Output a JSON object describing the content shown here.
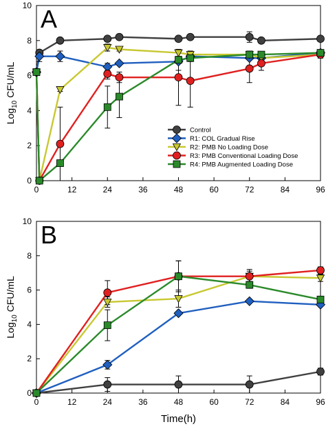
{
  "chart_data": [
    {
      "panel": "A",
      "type": "line",
      "ylabel_main": "Log",
      "ylabel_sub": "10",
      "ylabel_rest": " CFU/mL",
      "xlabel": "",
      "xlim": [
        0,
        96
      ],
      "ylim": [
        0,
        10
      ],
      "xticks": [
        0,
        12,
        24,
        36,
        48,
        60,
        72,
        84,
        96
      ],
      "yticks": [
        0,
        2,
        4,
        6,
        8,
        10
      ],
      "legend_position": "lower-right",
      "series": [
        {
          "name": "Control",
          "color": "#404040",
          "marker": "circle",
          "x": [
            0,
            1,
            8,
            24,
            28,
            48,
            52,
            72,
            76,
            96
          ],
          "y": [
            6.2,
            7.3,
            8.0,
            8.1,
            8.2,
            8.1,
            8.2,
            8.2,
            8.0,
            8.1
          ],
          "err": [
            0,
            0,
            0,
            0.1,
            0.1,
            0,
            0.1,
            0.3,
            0.1,
            0.1
          ]
        },
        {
          "name": "R1: COL Gradual Rise",
          "color": "#1f5fbf",
          "marker": "diamond",
          "x": [
            0,
            1,
            8,
            24,
            28,
            48,
            52,
            72,
            76,
            96
          ],
          "y": [
            6.2,
            7.1,
            7.1,
            6.5,
            6.7,
            6.8,
            7.1,
            7.0,
            7.0,
            7.3
          ],
          "err": [
            0,
            0.3,
            0.3,
            0.2,
            0,
            0,
            0,
            0,
            0,
            0
          ]
        },
        {
          "name": "R2: PMB No Loading Dose",
          "color": "#c8c832",
          "marker": "triangle",
          "x": [
            0,
            1,
            8,
            24,
            28,
            48,
            52,
            72,
            76,
            96
          ],
          "y": [
            6.2,
            0,
            5.2,
            7.6,
            7.5,
            7.3,
            7.2,
            7.2,
            7.0,
            7.2
          ],
          "err": [
            0,
            0,
            0.1,
            0.2,
            0.1,
            0.2,
            0.2,
            0.2,
            0.2,
            0.2
          ]
        },
        {
          "name": "R3: PMB Conventional Loading Dose",
          "color": "#e02020",
          "marker": "circle",
          "x": [
            0,
            1,
            8,
            24,
            28,
            48,
            52,
            72,
            76,
            96
          ],
          "y": [
            6.2,
            0,
            2.1,
            6.1,
            5.9,
            5.9,
            5.7,
            6.4,
            6.7,
            7.2
          ],
          "err": [
            0,
            0,
            2.1,
            0.3,
            0.3,
            1.6,
            1.5,
            0.8,
            0.4,
            0.2
          ]
        },
        {
          "name": "R4: PMB Augmented Loading Dose",
          "color": "#2a8a2a",
          "marker": "square",
          "x": [
            0,
            1,
            8,
            24,
            28,
            48,
            52,
            72,
            76,
            96
          ],
          "y": [
            6.2,
            0,
            1.0,
            4.2,
            4.8,
            6.9,
            7.0,
            7.2,
            7.2,
            7.3
          ],
          "err": [
            0,
            0,
            0,
            1.2,
            1.2,
            0.6,
            0.2,
            0.2,
            0,
            0
          ]
        }
      ]
    },
    {
      "panel": "B",
      "type": "line",
      "ylabel_main": "Log",
      "ylabel_sub": "10",
      "ylabel_rest": " CFU/mL",
      "xlabel": "Time(h)",
      "xlim": [
        0,
        96
      ],
      "ylim": [
        0,
        10
      ],
      "xticks": [
        0,
        12,
        24,
        36,
        48,
        60,
        72,
        84,
        96
      ],
      "yticks": [
        0,
        2,
        4,
        6,
        8,
        10
      ],
      "series": [
        {
          "name": "Control",
          "color": "#404040",
          "marker": "circle",
          "x": [
            0,
            24,
            48,
            72,
            96
          ],
          "y": [
            0,
            0.5,
            0.5,
            0.5,
            1.25
          ],
          "err": [
            0,
            0.4,
            0.5,
            0.5,
            0.2
          ]
        },
        {
          "name": "R1: COL Gradual Rise",
          "color": "#1f5fbf",
          "marker": "diamond",
          "x": [
            0,
            24,
            48,
            72,
            96
          ],
          "y": [
            0,
            1.65,
            4.65,
            5.35,
            5.15
          ],
          "err": [
            0,
            0.25,
            0,
            0.1,
            0.1
          ]
        },
        {
          "name": "R2: PMB No Loading Dose",
          "color": "#c8c832",
          "marker": "triangle",
          "x": [
            0,
            24,
            48,
            72,
            96
          ],
          "y": [
            0,
            5.3,
            5.5,
            6.8,
            6.7
          ],
          "err": [
            0,
            0.3,
            0.5,
            0.3,
            0.2
          ]
        },
        {
          "name": "R3: PMB Conventional Loading Dose",
          "color": "#e02020",
          "marker": "circle",
          "x": [
            0,
            24,
            48,
            72,
            96
          ],
          "y": [
            0,
            5.85,
            6.8,
            6.8,
            7.15
          ],
          "err": [
            0,
            0.7,
            0.9,
            0.4,
            0.2
          ]
        },
        {
          "name": "R4: PMB Augmented Loading Dose",
          "color": "#2a8a2a",
          "marker": "square",
          "x": [
            0,
            24,
            48,
            72,
            96
          ],
          "y": [
            0,
            3.95,
            6.8,
            6.3,
            5.45
          ],
          "err": [
            0,
            0.9,
            0.9,
            0.2,
            0
          ]
        }
      ]
    }
  ]
}
